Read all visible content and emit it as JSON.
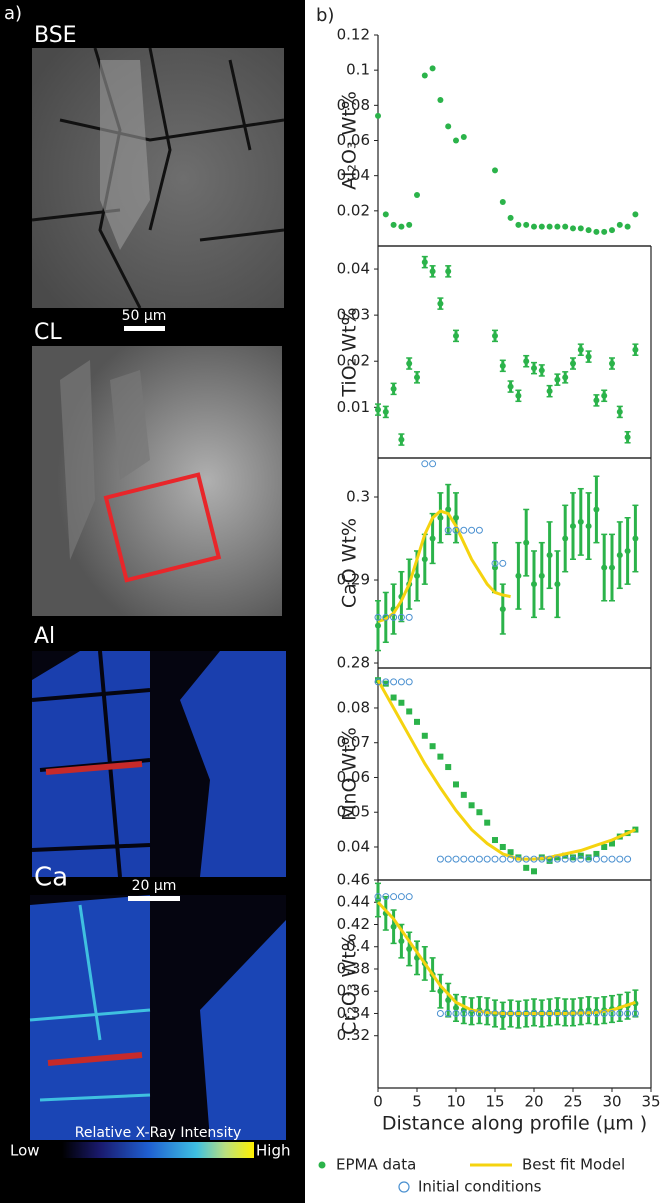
{
  "panel_a": {
    "label": "a)",
    "images": [
      "BSE",
      "CL",
      "Al",
      "Ca"
    ],
    "scale_bars": [
      "50 µm",
      "20 µm"
    ],
    "colorbar": {
      "title": "Relative X-Ray Intensity",
      "low": "Low",
      "high": "High"
    }
  },
  "panel_b_label": "b)",
  "chart_data": [
    {
      "type": "scatter",
      "ylabel": "Al₂O₃ Wt%",
      "xlim": [
        0,
        35
      ],
      "ylim": [
        0,
        0.12
      ],
      "yticks": [
        0.02,
        0.04,
        0.06,
        0.08,
        0.1,
        0.12
      ],
      "series": [
        {
          "color": "#2bb34a",
          "marker": "circle",
          "x": [
            0,
            1,
            2,
            3,
            4,
            5,
            6,
            7,
            8,
            9,
            10,
            11,
            15,
            16,
            17,
            18,
            19,
            20,
            21,
            22,
            23,
            24,
            25,
            26,
            27,
            28,
            29,
            30,
            31,
            32,
            33
          ],
          "values": [
            0.074,
            0.018,
            0.012,
            0.011,
            0.012,
            0.029,
            0.097,
            0.101,
            0.083,
            0.068,
            0.06,
            0.062,
            0.043,
            0.025,
            0.016,
            0.012,
            0.012,
            0.011,
            0.011,
            0.011,
            0.011,
            0.011,
            0.01,
            0.01,
            0.009,
            0.008,
            0.008,
            0.009,
            0.012,
            0.011,
            0.018
          ]
        }
      ]
    },
    {
      "type": "scatter",
      "ylabel": "TiO₂ Wt%",
      "xlim": [
        0,
        35
      ],
      "ylim": [
        -0.001,
        0.045
      ],
      "yticks": [
        0.01,
        0.02,
        0.03,
        0.04
      ],
      "series": [
        {
          "color": "#2bb34a",
          "marker": "circle",
          "x": [
            0,
            1,
            2,
            3,
            4,
            5,
            6,
            7,
            8,
            9,
            10,
            15,
            16,
            17,
            18,
            19,
            20,
            21,
            22,
            23,
            24,
            25,
            26,
            27,
            28,
            29,
            30,
            31,
            32,
            33
          ],
          "values": [
            0.0095,
            0.009,
            0.014,
            0.003,
            0.0195,
            0.0165,
            0.0415,
            0.0395,
            0.0325,
            0.0395,
            0.0255,
            0.0255,
            0.019,
            0.0145,
            0.0125,
            0.02,
            0.0185,
            0.018,
            0.0135,
            0.016,
            0.0165,
            0.0195,
            0.0225,
            0.021,
            0.0115,
            0.0125,
            0.0195,
            0.009,
            0.0035,
            0.0225
          ],
          "errors": [
            0.0012,
            0.0012,
            0.0012,
            0.0012,
            0.0012,
            0.0012,
            0.0012,
            0.0012,
            0.0012,
            0.0012,
            0.0012,
            0.0012,
            0.0012,
            0.0012,
            0.0012,
            0.0012,
            0.0012,
            0.0012,
            0.0012,
            0.0012,
            0.0012,
            0.0012,
            0.0012,
            0.0012,
            0.0012,
            0.0012,
            0.0012,
            0.0012,
            0.0012,
            0.0012
          ]
        }
      ]
    },
    {
      "type": "scatter",
      "ylabel": "CaO Wt%",
      "xlim": [
        0,
        35
      ],
      "ylim": [
        0.2794,
        0.3047
      ],
      "yticks": [
        0.28,
        0.29,
        0.3
      ],
      "series": [
        {
          "color": "#2bb34a",
          "marker": "circle",
          "x": [
            0,
            1,
            2,
            3,
            4,
            5,
            6,
            7,
            8,
            9,
            10,
            15,
            16,
            18,
            19,
            20,
            21,
            22,
            23,
            24,
            25,
            26,
            27,
            28,
            29,
            30,
            31,
            32,
            33
          ],
          "values": [
            0.2845,
            0.2855,
            0.2865,
            0.288,
            0.2895,
            0.2905,
            0.2925,
            0.295,
            0.2975,
            0.2985,
            0.2975,
            0.2915,
            0.2865,
            0.2905,
            0.2945,
            0.2895,
            0.2905,
            0.293,
            0.2895,
            0.295,
            0.2965,
            0.297,
            0.2965,
            0.2985,
            0.2915,
            0.2915,
            0.293,
            0.2935,
            0.295
          ],
          "errors": [
            0.003,
            0.003,
            0.003,
            0.003,
            0.003,
            0.003,
            0.003,
            0.003,
            0.003,
            0.003,
            0.003,
            0.003,
            0.003,
            0.004,
            0.004,
            0.004,
            0.004,
            0.004,
            0.004,
            0.004,
            0.004,
            0.004,
            0.004,
            0.004,
            0.004,
            0.004,
            0.004,
            0.004,
            0.004
          ]
        },
        {
          "color": "#f5d30f",
          "marker": "line",
          "x": [
            0,
            1,
            2,
            3,
            4,
            5,
            6,
            7,
            8,
            9,
            10,
            11,
            12,
            13,
            14,
            15,
            16,
            17
          ],
          "values": [
            0.285,
            0.2853,
            0.286,
            0.2875,
            0.2895,
            0.2925,
            0.2955,
            0.2975,
            0.2983,
            0.298,
            0.2965,
            0.2945,
            0.2925,
            0.291,
            0.2895,
            0.2885,
            0.2882,
            0.288
          ]
        },
        {
          "color": "#4a90d0",
          "marker": "open-circle",
          "x": [
            0,
            1,
            2,
            3,
            4,
            6,
            7,
            9,
            10,
            11,
            12,
            13,
            15,
            16
          ],
          "values": [
            0.2855,
            0.2855,
            0.2855,
            0.2855,
            0.2855,
            0.304,
            0.304,
            0.296,
            0.296,
            0.296,
            0.296,
            0.296,
            0.292,
            0.292
          ]
        }
      ]
    },
    {
      "type": "scatter",
      "ylabel": "MnO Wt%",
      "xlim": [
        0,
        35
      ],
      "ylim": [
        0.0305,
        0.0915
      ],
      "yticks": [
        0.04,
        0.05,
        0.06,
        0.07,
        0.08
      ],
      "series": [
        {
          "color": "#2bb34a",
          "marker": "square",
          "x": [
            0,
            1,
            2,
            3,
            4,
            5,
            6,
            7,
            8,
            9,
            10,
            11,
            12,
            13,
            14,
            15,
            16,
            17,
            18,
            19,
            20,
            21,
            22,
            23,
            24,
            25,
            26,
            27,
            28,
            29,
            30,
            31,
            32,
            33
          ],
          "values": [
            0.088,
            0.087,
            0.083,
            0.0815,
            0.079,
            0.076,
            0.072,
            0.069,
            0.066,
            0.063,
            0.058,
            0.055,
            0.052,
            0.05,
            0.047,
            0.042,
            0.04,
            0.0385,
            0.037,
            0.034,
            0.033,
            0.037,
            0.036,
            0.037,
            0.0375,
            0.037,
            0.0375,
            0.037,
            0.038,
            0.04,
            0.041,
            0.043,
            0.044,
            0.045
          ]
        },
        {
          "color": "#f5d30f",
          "marker": "line",
          "x": [
            0,
            2,
            4,
            6,
            8,
            10,
            12,
            14,
            16,
            18,
            20,
            22,
            24,
            26,
            28,
            30,
            32,
            33
          ],
          "values": [
            0.088,
            0.08,
            0.072,
            0.064,
            0.057,
            0.0505,
            0.045,
            0.041,
            0.038,
            0.0365,
            0.0365,
            0.037,
            0.038,
            0.039,
            0.0405,
            0.042,
            0.044,
            0.045
          ]
        },
        {
          "color": "#4a90d0",
          "marker": "open-circle",
          "x": [
            0,
            1,
            2,
            3,
            4,
            8,
            9,
            10,
            11,
            12,
            13,
            14,
            15,
            16,
            17,
            18,
            19,
            20,
            21,
            22,
            23,
            24,
            25,
            26,
            27,
            28,
            29,
            30,
            31,
            32
          ],
          "values": [
            0.0875,
            0.0875,
            0.0875,
            0.0875,
            0.0875,
            0.0365,
            0.0365,
            0.0365,
            0.0365,
            0.0365,
            0.0365,
            0.0365,
            0.0365,
            0.0365,
            0.0365,
            0.0365,
            0.0365,
            0.0365,
            0.0365,
            0.0365,
            0.0365,
            0.0365,
            0.0365,
            0.0365,
            0.0365,
            0.0365,
            0.0365,
            0.0365,
            0.0365,
            0.0365
          ]
        }
      ]
    },
    {
      "type": "scatter",
      "ylabel": "Cr₂O₃ Wt%",
      "xlabel": "Distance along profile (µm )",
      "xlim": [
        0,
        35
      ],
      "xticks": [
        0,
        5,
        10,
        15,
        20,
        25,
        30,
        35
      ],
      "ylim": [
        0.273,
        0.46
      ],
      "yticks": [
        0.32,
        0.34,
        0.36,
        0.38,
        0.4,
        0.42,
        0.44,
        0.46
      ],
      "series": [
        {
          "name": "EPMA data",
          "color": "#2bb34a",
          "marker": "circle",
          "x": [
            0,
            1,
            2,
            3,
            4,
            5,
            6,
            7,
            8,
            9,
            10,
            11,
            12,
            13,
            14,
            15,
            16,
            17,
            18,
            19,
            20,
            21,
            22,
            23,
            24,
            25,
            26,
            27,
            28,
            29,
            30,
            31,
            32,
            33
          ],
          "values": [
            0.442,
            0.43,
            0.418,
            0.405,
            0.398,
            0.39,
            0.385,
            0.375,
            0.36,
            0.352,
            0.345,
            0.343,
            0.342,
            0.343,
            0.342,
            0.34,
            0.338,
            0.34,
            0.339,
            0.34,
            0.341,
            0.34,
            0.341,
            0.342,
            0.341,
            0.341,
            0.342,
            0.343,
            0.342,
            0.343,
            0.344,
            0.345,
            0.347,
            0.349
          ],
          "errors": [
            0.015,
            0.015,
            0.015,
            0.015,
            0.015,
            0.015,
            0.015,
            0.015,
            0.015,
            0.015,
            0.012,
            0.012,
            0.012,
            0.012,
            0.012,
            0.012,
            0.012,
            0.012,
            0.012,
            0.012,
            0.012,
            0.012,
            0.012,
            0.012,
            0.012,
            0.012,
            0.012,
            0.012,
            0.012,
            0.012,
            0.012,
            0.012,
            0.012,
            0.012
          ]
        },
        {
          "name": "Best fit Model",
          "color": "#f5d30f",
          "marker": "line",
          "x": [
            0,
            2,
            4,
            6,
            8,
            10,
            12,
            14,
            16,
            20,
            24,
            28,
            30,
            33
          ],
          "values": [
            0.44,
            0.425,
            0.405,
            0.385,
            0.365,
            0.35,
            0.343,
            0.341,
            0.34,
            0.34,
            0.34,
            0.341,
            0.343,
            0.35
          ]
        },
        {
          "name": "Initial conditions",
          "color": "#4a90d0",
          "marker": "open-circle",
          "x": [
            0,
            1,
            2,
            3,
            4,
            8,
            9,
            10,
            11,
            12,
            13,
            14,
            15,
            16,
            17,
            18,
            19,
            20,
            21,
            22,
            23,
            24,
            25,
            26,
            27,
            28,
            29,
            30,
            31,
            32,
            33
          ],
          "values": [
            0.445,
            0.445,
            0.445,
            0.445,
            0.445,
            0.34,
            0.34,
            0.34,
            0.34,
            0.34,
            0.34,
            0.34,
            0.34,
            0.34,
            0.34,
            0.34,
            0.34,
            0.34,
            0.34,
            0.34,
            0.34,
            0.34,
            0.34,
            0.34,
            0.34,
            0.34,
            0.34,
            0.34,
            0.34,
            0.34,
            0.34
          ]
        }
      ]
    }
  ]
}
